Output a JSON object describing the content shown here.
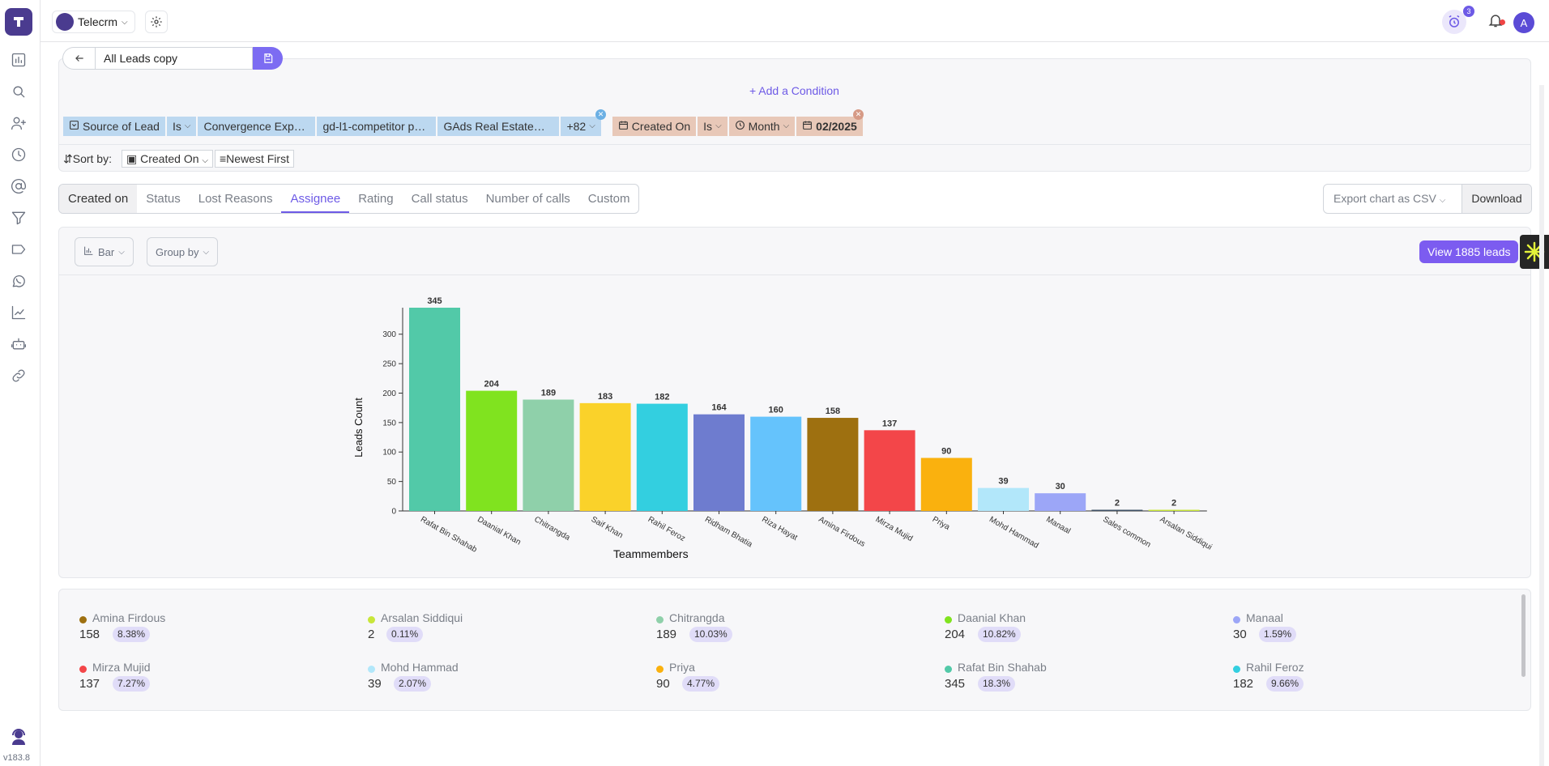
{
  "app": {
    "workspace": "Telecrm",
    "version": "v183.8",
    "alarm_count": "3",
    "avatar_initial": "A"
  },
  "view": {
    "name": "All Leads copy",
    "add_condition": "+ Add a Condition"
  },
  "filters": {
    "source": {
      "field": "Source of Lead",
      "op": "Is",
      "v1": "Convergence Exp…",
      "v2": "gd-l1-competitor p…",
      "v3": "GAds Real Estate…",
      "more": "+82"
    },
    "created": {
      "field": "Created On",
      "op": "Is",
      "period": "Month",
      "value": "02/2025"
    }
  },
  "sort": {
    "label": "Sort by:",
    "field": "Created On",
    "order": "Newest First"
  },
  "tabs": [
    "Created on",
    "Status",
    "Lost Reasons",
    "Assignee",
    "Rating",
    "Call status",
    "Number of calls",
    "Custom"
  ],
  "active_tab": "Assignee",
  "export": {
    "select": "Export chart as CSV",
    "download": "Download"
  },
  "chart_controls": {
    "type": "Bar",
    "group": "Group by",
    "view_leads": "View 1885 leads"
  },
  "chart_data": {
    "type": "bar",
    "xlabel": "Teammembers",
    "ylabel": "Leads Count",
    "ylim": [
      0,
      345
    ],
    "yticks": [
      0,
      50,
      100,
      150,
      200,
      250,
      300
    ],
    "categories": [
      "Rafat Bin Shahab",
      "Daanial Khan",
      "Chitrangda",
      "Saif Khan",
      "Rahil Feroz",
      "Ridham Bhatia",
      "Riza Hayat",
      "Amina Firdous",
      "Mirza Mujid",
      "Priya",
      "Mohd Hammad",
      "Manaal",
      "Sales common",
      "Arsalan Siddiqui"
    ],
    "values": [
      345,
      204,
      189,
      183,
      182,
      164,
      160,
      158,
      137,
      90,
      39,
      30,
      2,
      2
    ],
    "colors": [
      "#52c9a8",
      "#80e31f",
      "#8fd0aa",
      "#fad22a",
      "#33cfe0",
      "#6e7ccf",
      "#65c3fc",
      "#9e7010",
      "#f34649",
      "#fab10e",
      "#b2e7fa",
      "#9ca6f7",
      "#3f5166",
      "#c8e63a"
    ]
  },
  "legend": [
    {
      "name": "Amina Firdous",
      "value": "158",
      "pct": "8.38%",
      "color": "#9e7010"
    },
    {
      "name": "Arsalan Siddiqui",
      "value": "2",
      "pct": "0.11%",
      "color": "#c8e63a"
    },
    {
      "name": "Chitrangda",
      "value": "189",
      "pct": "10.03%",
      "color": "#8fd0aa"
    },
    {
      "name": "Daanial Khan",
      "value": "204",
      "pct": "10.82%",
      "color": "#80e31f"
    },
    {
      "name": "Manaal",
      "value": "30",
      "pct": "1.59%",
      "color": "#9ca6f7"
    },
    {
      "name": "Mirza Mujid",
      "value": "137",
      "pct": "7.27%",
      "color": "#f34649"
    },
    {
      "name": "Mohd Hammad",
      "value": "39",
      "pct": "2.07%",
      "color": "#b2e7fa"
    },
    {
      "name": "Priya",
      "value": "90",
      "pct": "4.77%",
      "color": "#fab10e"
    },
    {
      "name": "Rafat Bin Shahab",
      "value": "345",
      "pct": "18.3%",
      "color": "#52c9a8"
    },
    {
      "name": "Rahil Feroz",
      "value": "182",
      "pct": "9.66%",
      "color": "#33cfe0"
    }
  ]
}
